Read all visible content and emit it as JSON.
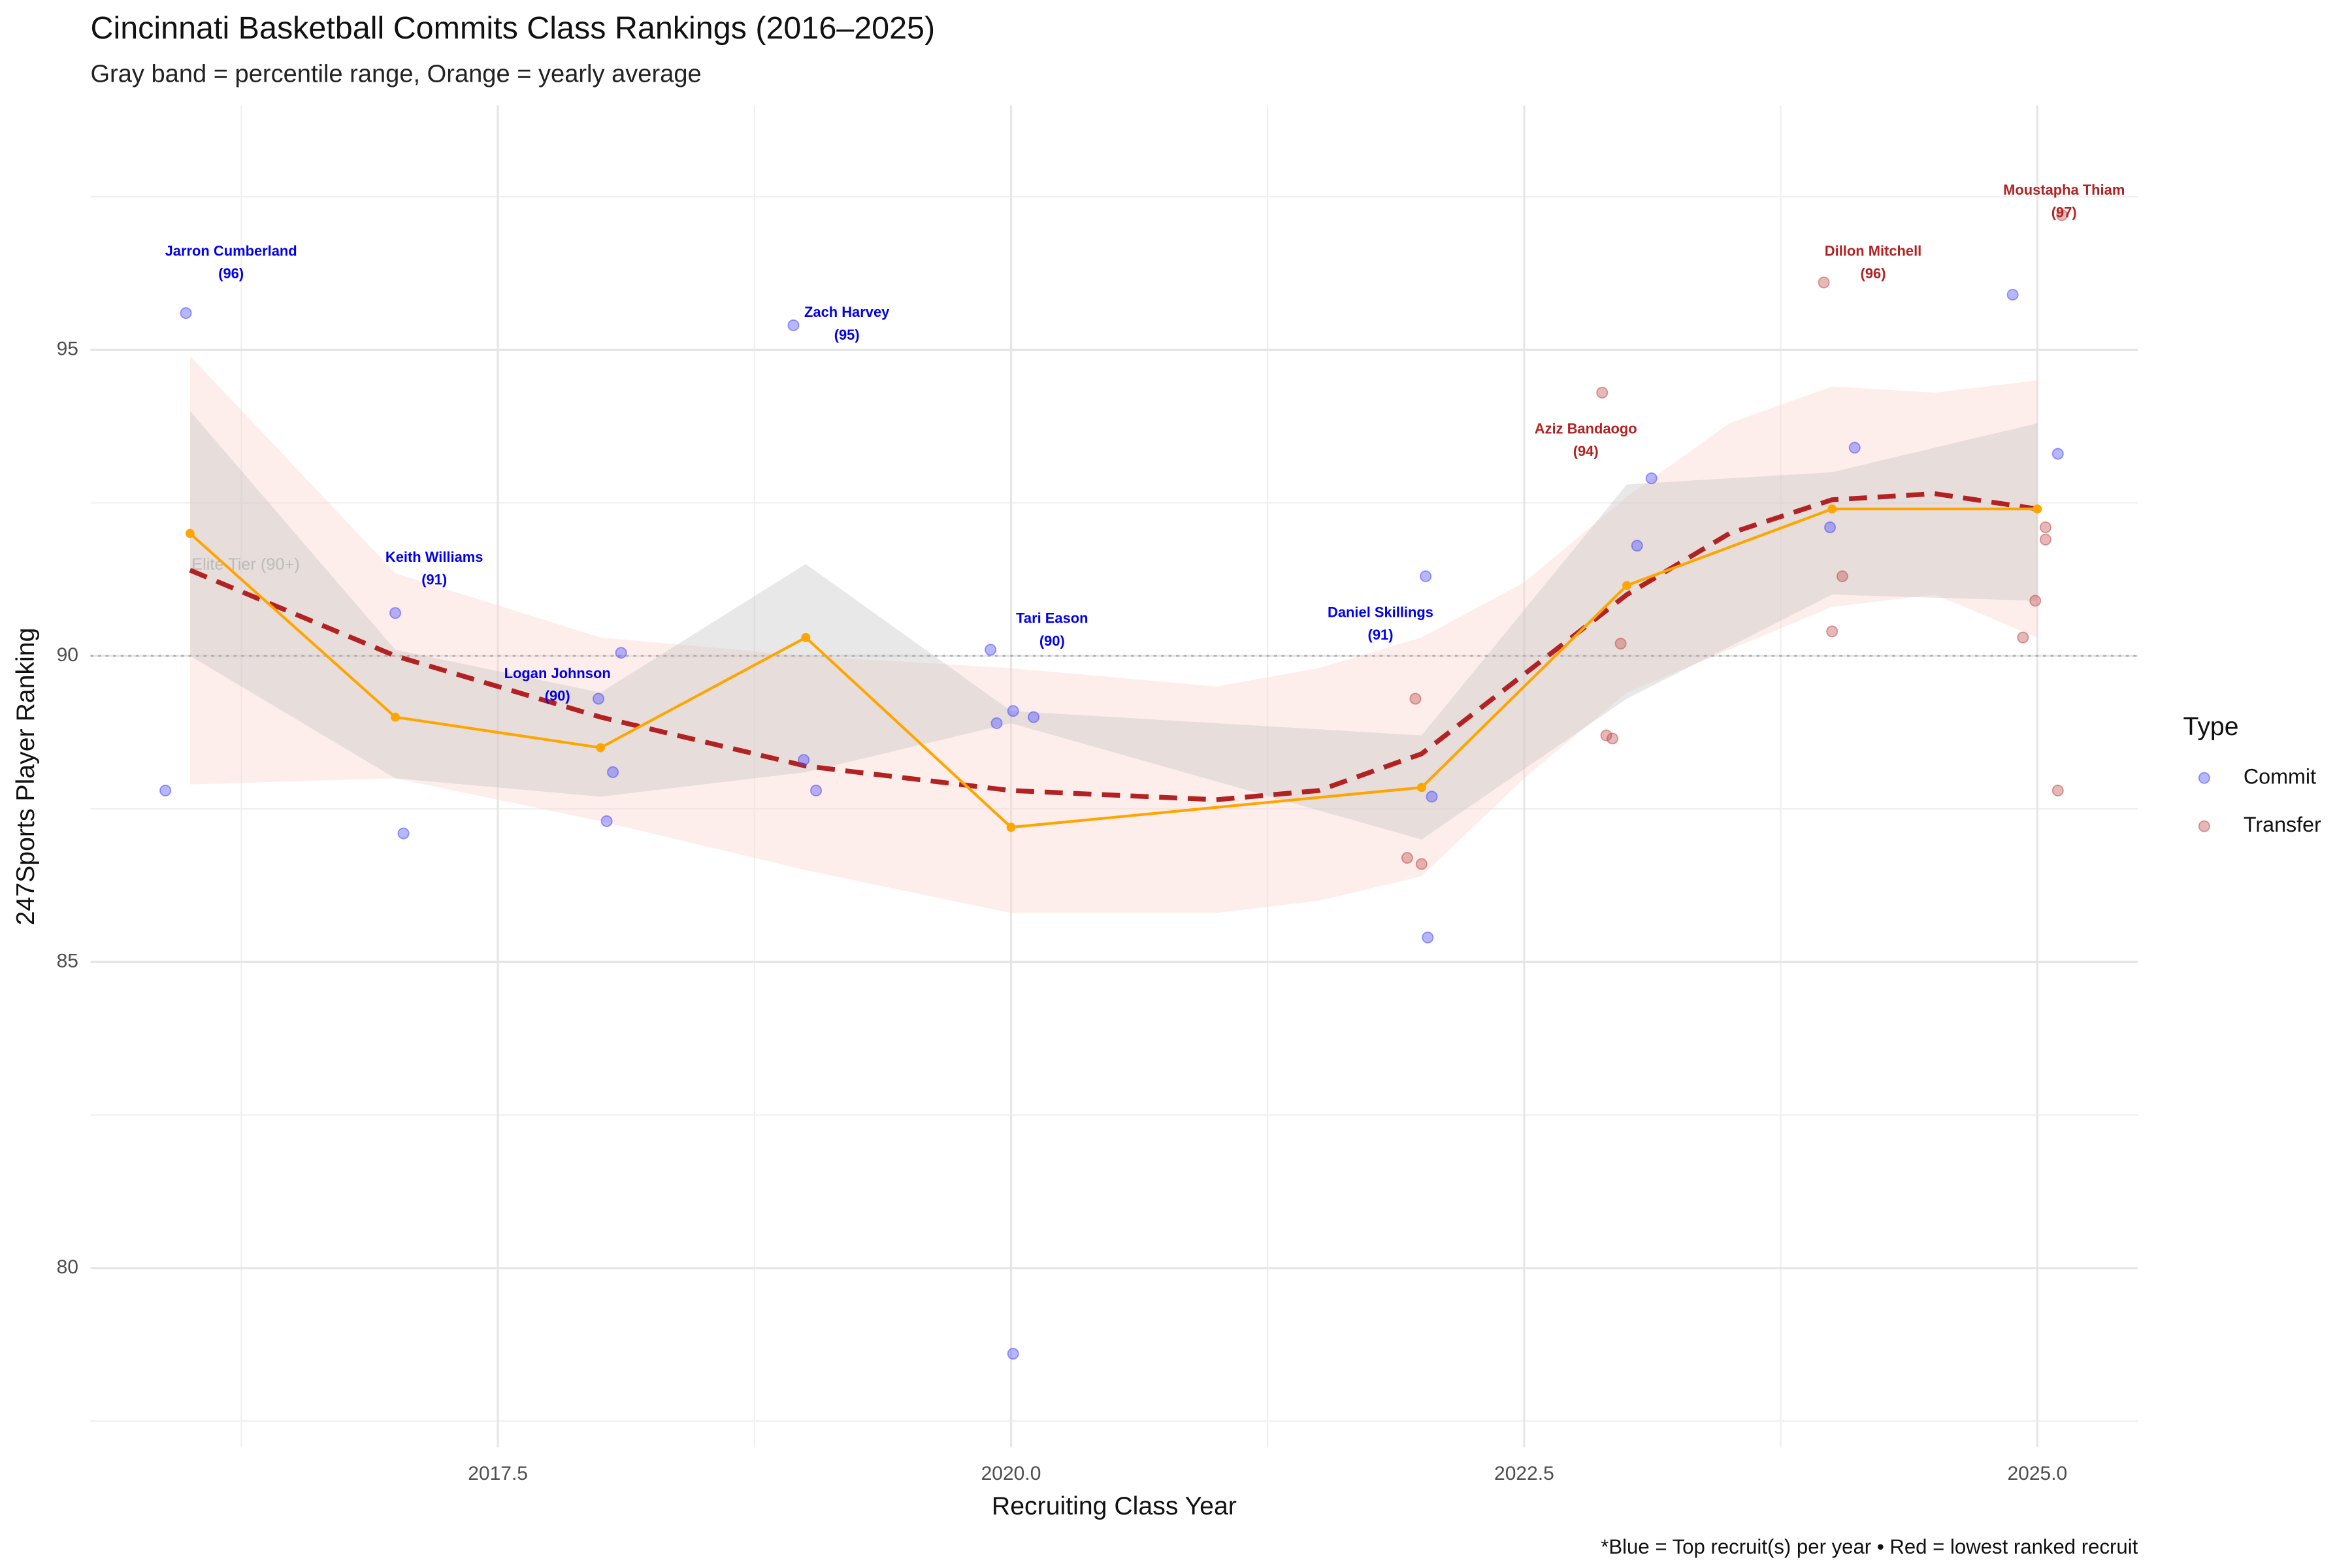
{
  "chart_data": {
    "type": "scatter",
    "title": "Cincinnati Basketball Commits Class Rankings (2016–2025)",
    "subtitle": "Gray band = percentile range, Orange = yearly average",
    "x_label": "Recruiting Class Year",
    "y_label": "247Sports Player Ranking",
    "caption": "*Blue = Top recruit(s) per year • Red = lowest ranked recruit",
    "legend_title": "Type",
    "legend_position": "right",
    "grid": true,
    "xlim": [
      2015.515,
      2025.49
    ],
    "ylim": [
      77.07,
      98.99
    ],
    "xticks": [
      2017.5,
      {
        "value": 2020,
        "label": "2020.0"
      },
      2022.5,
      {
        "value": 2025,
        "label": "2025.0"
      }
    ],
    "xminor": [
      2016.25,
      2018.75,
      2021.25,
      2023.75
    ],
    "yticks": [
      80,
      85,
      90,
      95
    ],
    "yminor": [
      77.5,
      82.5,
      87.5,
      92.5,
      97.5
    ],
    "series": [
      {
        "name": "Commit",
        "color": "#4a4aff",
        "x": [
          2015.98,
          2015.88,
          2017.0,
          2017.04,
          2017.99,
          2018.03,
          2018.06,
          2018.1,
          2018.94,
          2018.99,
          2019.05,
          2019.9,
          2019.93,
          2020.01,
          2020.11,
          2020.01,
          2022.02,
          2022.05,
          2022.03,
          2023.05,
          2023.12,
          2023.99,
          2024.11,
          2024.88,
          2025.1
        ],
        "values": [
          95.6,
          87.8,
          90.7,
          87.1,
          89.3,
          87.3,
          88.1,
          90.05,
          95.4,
          88.3,
          87.8,
          90.1,
          88.9,
          89.1,
          89.0,
          78.6,
          91.3,
          87.7,
          85.4,
          91.8,
          92.9,
          92.1,
          93.4,
          95.9,
          93.3
        ]
      },
      {
        "name": "Transfer",
        "color": "#c0504d",
        "x": [
          2021.97,
          2021.93,
          2022.0,
          2022.88,
          2022.9,
          2022.93,
          2022.97,
          2023.96,
          2024.05,
          2024.0,
          2025.12,
          2025.04,
          2025.04,
          2024.99,
          2024.93,
          2025.1
        ],
        "values": [
          89.3,
          86.7,
          86.6,
          94.3,
          88.7,
          88.65,
          90.2,
          96.1,
          91.3,
          90.4,
          97.2,
          92.1,
          91.9,
          90.9,
          90.3,
          87.8
        ]
      }
    ],
    "average": {
      "color": "#ffa500",
      "x": [
        2016,
        2017,
        2018,
        2019,
        2020,
        2022,
        2023,
        2024,
        2025
      ],
      "values": [
        92.0,
        89.0,
        88.5,
        90.3,
        87.2,
        87.85,
        91.15,
        92.4,
        92.4
      ]
    },
    "percentile_band": {
      "color": "#bdbdbd",
      "x": [
        2016,
        2017,
        2018,
        2019,
        2020,
        2022,
        2023,
        2024,
        2025
      ],
      "lower": [
        90.0,
        88.0,
        87.7,
        88.1,
        88.9,
        87.0,
        89.3,
        91.0,
        90.9
      ],
      "upper": [
        94.0,
        90.1,
        89.4,
        91.5,
        89.1,
        88.7,
        92.8,
        93.0,
        93.8
      ]
    },
    "smooth": {
      "color": "#b22222",
      "band_color": "#fbd5d0",
      "x": [
        2016,
        2017,
        2018,
        2019,
        2020,
        2021,
        2021.5,
        2022,
        2022.5,
        2023,
        2023.5,
        2024,
        2024.5,
        2025
      ],
      "values": [
        91.4,
        90.0,
        89.0,
        88.2,
        87.8,
        87.65,
        87.8,
        88.4,
        89.7,
        91.0,
        92.0,
        92.55,
        92.65,
        92.4
      ],
      "lower": [
        87.9,
        88.0,
        87.3,
        86.5,
        85.8,
        85.8,
        86.0,
        86.4,
        88.0,
        89.4,
        90.1,
        90.8,
        91.0,
        90.3
      ],
      "upper": [
        94.9,
        91.35,
        90.3,
        90.0,
        89.8,
        89.5,
        89.8,
        90.3,
        91.2,
        92.6,
        93.8,
        94.4,
        94.3,
        94.5
      ]
    },
    "reference_line": {
      "value": 90,
      "label": "Elite Tier (90+)",
      "color": "#aaaaaa"
    },
    "annotations": [
      {
        "name": "Jarron Cumberland",
        "label": "(96)",
        "value": 96,
        "x": 2016.2,
        "y": 96.4,
        "color": "#0000ee"
      },
      {
        "name": "Keith Williams",
        "label": "(91)",
        "value": 91,
        "x": 2017.19,
        "y": 91.4,
        "color": "#0000ee"
      },
      {
        "name": "Logan Johnson",
        "label": "(90)",
        "value": 90,
        "x": 2017.79,
        "y": 89.5,
        "color": "#0000ee"
      },
      {
        "name": "Zach Harvey",
        "label": "(95)",
        "value": 95,
        "x": 2019.2,
        "y": 95.4,
        "color": "#0000ee"
      },
      {
        "name": "Tari Eason",
        "label": "(90)",
        "value": 90,
        "x": 2020.2,
        "y": 90.4,
        "color": "#0000ee"
      },
      {
        "name": "Daniel Skillings",
        "label": "(91)",
        "value": 91,
        "x": 2021.8,
        "y": 90.5,
        "color": "#0000ee"
      },
      {
        "name": "Aziz Bandaogo",
        "label": "(94)",
        "value": 94,
        "x": 2022.8,
        "y": 93.5,
        "color": "#b22222"
      },
      {
        "name": "Dillon Mitchell",
        "label": "(96)",
        "value": 96,
        "x": 2024.2,
        "y": 96.4,
        "color": "#b22222"
      },
      {
        "name": "Moustapha Thiam",
        "label": "(97)",
        "value": 97,
        "x": 2025.13,
        "y": 97.4,
        "color": "#b22222"
      }
    ]
  }
}
